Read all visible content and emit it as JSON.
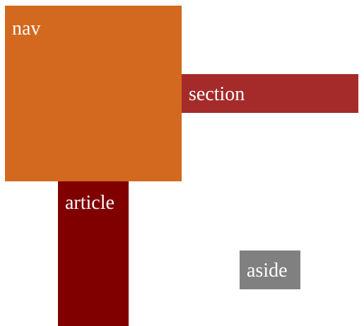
{
  "boxes": {
    "nav": {
      "label": "nav",
      "color": "#D2691E"
    },
    "section": {
      "label": "section",
      "color": "#A52A2A"
    },
    "article": {
      "label": "article",
      "color": "#800000"
    },
    "aside": {
      "label": "aside",
      "color": "#808080"
    }
  }
}
